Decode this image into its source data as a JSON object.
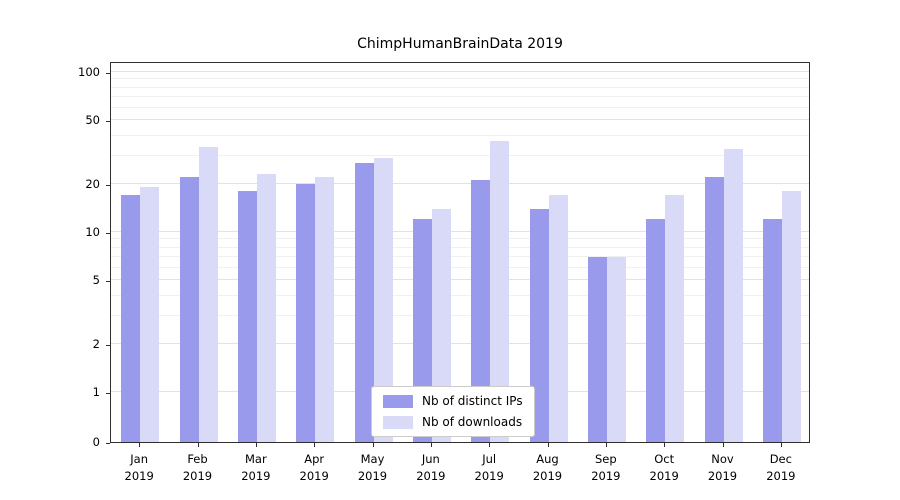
{
  "title": "ChimpHumanBrainData 2019",
  "chart_data": {
    "type": "bar",
    "title": "ChimpHumanBrainData 2019",
    "categories": [
      "Jan",
      "Feb",
      "Mar",
      "Apr",
      "May",
      "Jun",
      "Jul",
      "Aug",
      "Sep",
      "Oct",
      "Nov",
      "Dec"
    ],
    "year": "2019",
    "series": [
      {
        "name": "Nb of distinct IPs",
        "color": "#9a9aec",
        "values": [
          17,
          22,
          18,
          20,
          27,
          12,
          21,
          14,
          7,
          12,
          22,
          12
        ]
      },
      {
        "name": "Nb of downloads",
        "color": "#d9d9f8",
        "values": [
          19,
          34,
          23,
          22,
          29,
          14,
          37,
          17,
          7,
          17,
          33,
          18
        ]
      }
    ],
    "yscale": "symlog",
    "yticks": [
      0,
      1,
      2,
      5,
      10,
      20,
      50,
      100
    ],
    "minor_yticks": [
      3,
      4,
      6,
      7,
      8,
      9,
      30,
      40,
      60,
      70,
      80,
      90
    ],
    "ylim": [
      0,
      110
    ],
    "grid": true,
    "legend_position": "lower center",
    "xlabel": "",
    "ylabel": ""
  }
}
